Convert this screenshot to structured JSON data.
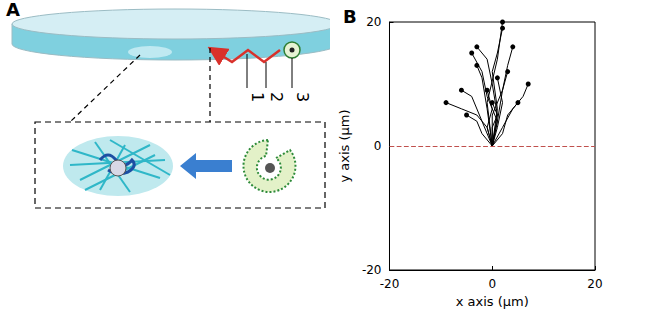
{
  "diagram": {
    "panel_label": "A",
    "step_labels": [
      "1",
      "2",
      "3"
    ]
  },
  "chart_data": {
    "type": "line",
    "panel_label": "B",
    "x_label": "x axis (μm)",
    "y_label": "y axis (μm)",
    "xlim": [
      -20,
      20
    ],
    "xticks": [
      -20,
      0,
      20
    ],
    "ylim": [
      -20,
      20
    ],
    "yticks": [
      -20,
      0,
      20
    ],
    "grid": false,
    "color": "#000000",
    "marker": "circle",
    "reference_line": {
      "y": 0,
      "color": "#c0504d",
      "line_style": "dashed"
    },
    "series": [
      {
        "x": [
          0,
          -1,
          -3,
          -6,
          -9
        ],
        "values": [
          0,
          3,
          5,
          6,
          7
        ]
      },
      {
        "x": [
          0,
          -2,
          -4,
          -6
        ],
        "values": [
          0,
          4,
          8,
          9
        ]
      },
      {
        "x": [
          0,
          1,
          0,
          -1,
          -3
        ],
        "values": [
          0,
          5,
          10,
          14,
          16
        ]
      },
      {
        "x": [
          0,
          -1,
          -2,
          -3
        ],
        "values": [
          0,
          6,
          11,
          13
        ]
      },
      {
        "x": [
          0,
          1,
          2,
          3,
          4
        ],
        "values": [
          0,
          4,
          9,
          13,
          16
        ]
      },
      {
        "x": [
          0,
          2,
          4,
          6,
          7
        ],
        "values": [
          0,
          3,
          6,
          8,
          10
        ]
      },
      {
        "x": [
          0,
          1,
          0,
          1,
          2
        ],
        "values": [
          0,
          6,
          12,
          15,
          19
        ]
      },
      {
        "x": [
          0,
          -1,
          0,
          -1
        ],
        "values": [
          0,
          3,
          6,
          9
        ]
      },
      {
        "x": [
          0,
          2,
          3,
          5
        ],
        "values": [
          0,
          2,
          5,
          7
        ]
      },
      {
        "x": [
          0,
          -2,
          -3,
          -5
        ],
        "values": [
          0,
          2,
          4,
          5
        ]
      },
      {
        "x": [
          0,
          0,
          2,
          3
        ],
        "values": [
          0,
          5,
          9,
          12
        ]
      },
      {
        "x": [
          0,
          1,
          -1,
          -2,
          -4
        ],
        "values": [
          0,
          4,
          8,
          12,
          15
        ]
      },
      {
        "x": [
          0,
          0,
          1,
          0
        ],
        "values": [
          0,
          3,
          5,
          7
        ]
      },
      {
        "x": [
          0,
          1,
          2,
          1
        ],
        "values": [
          0,
          3,
          7,
          11
        ]
      },
      {
        "x": [
          0,
          -1,
          1,
          2
        ],
        "values": [
          0,
          7,
          14,
          20
        ]
      }
    ]
  }
}
